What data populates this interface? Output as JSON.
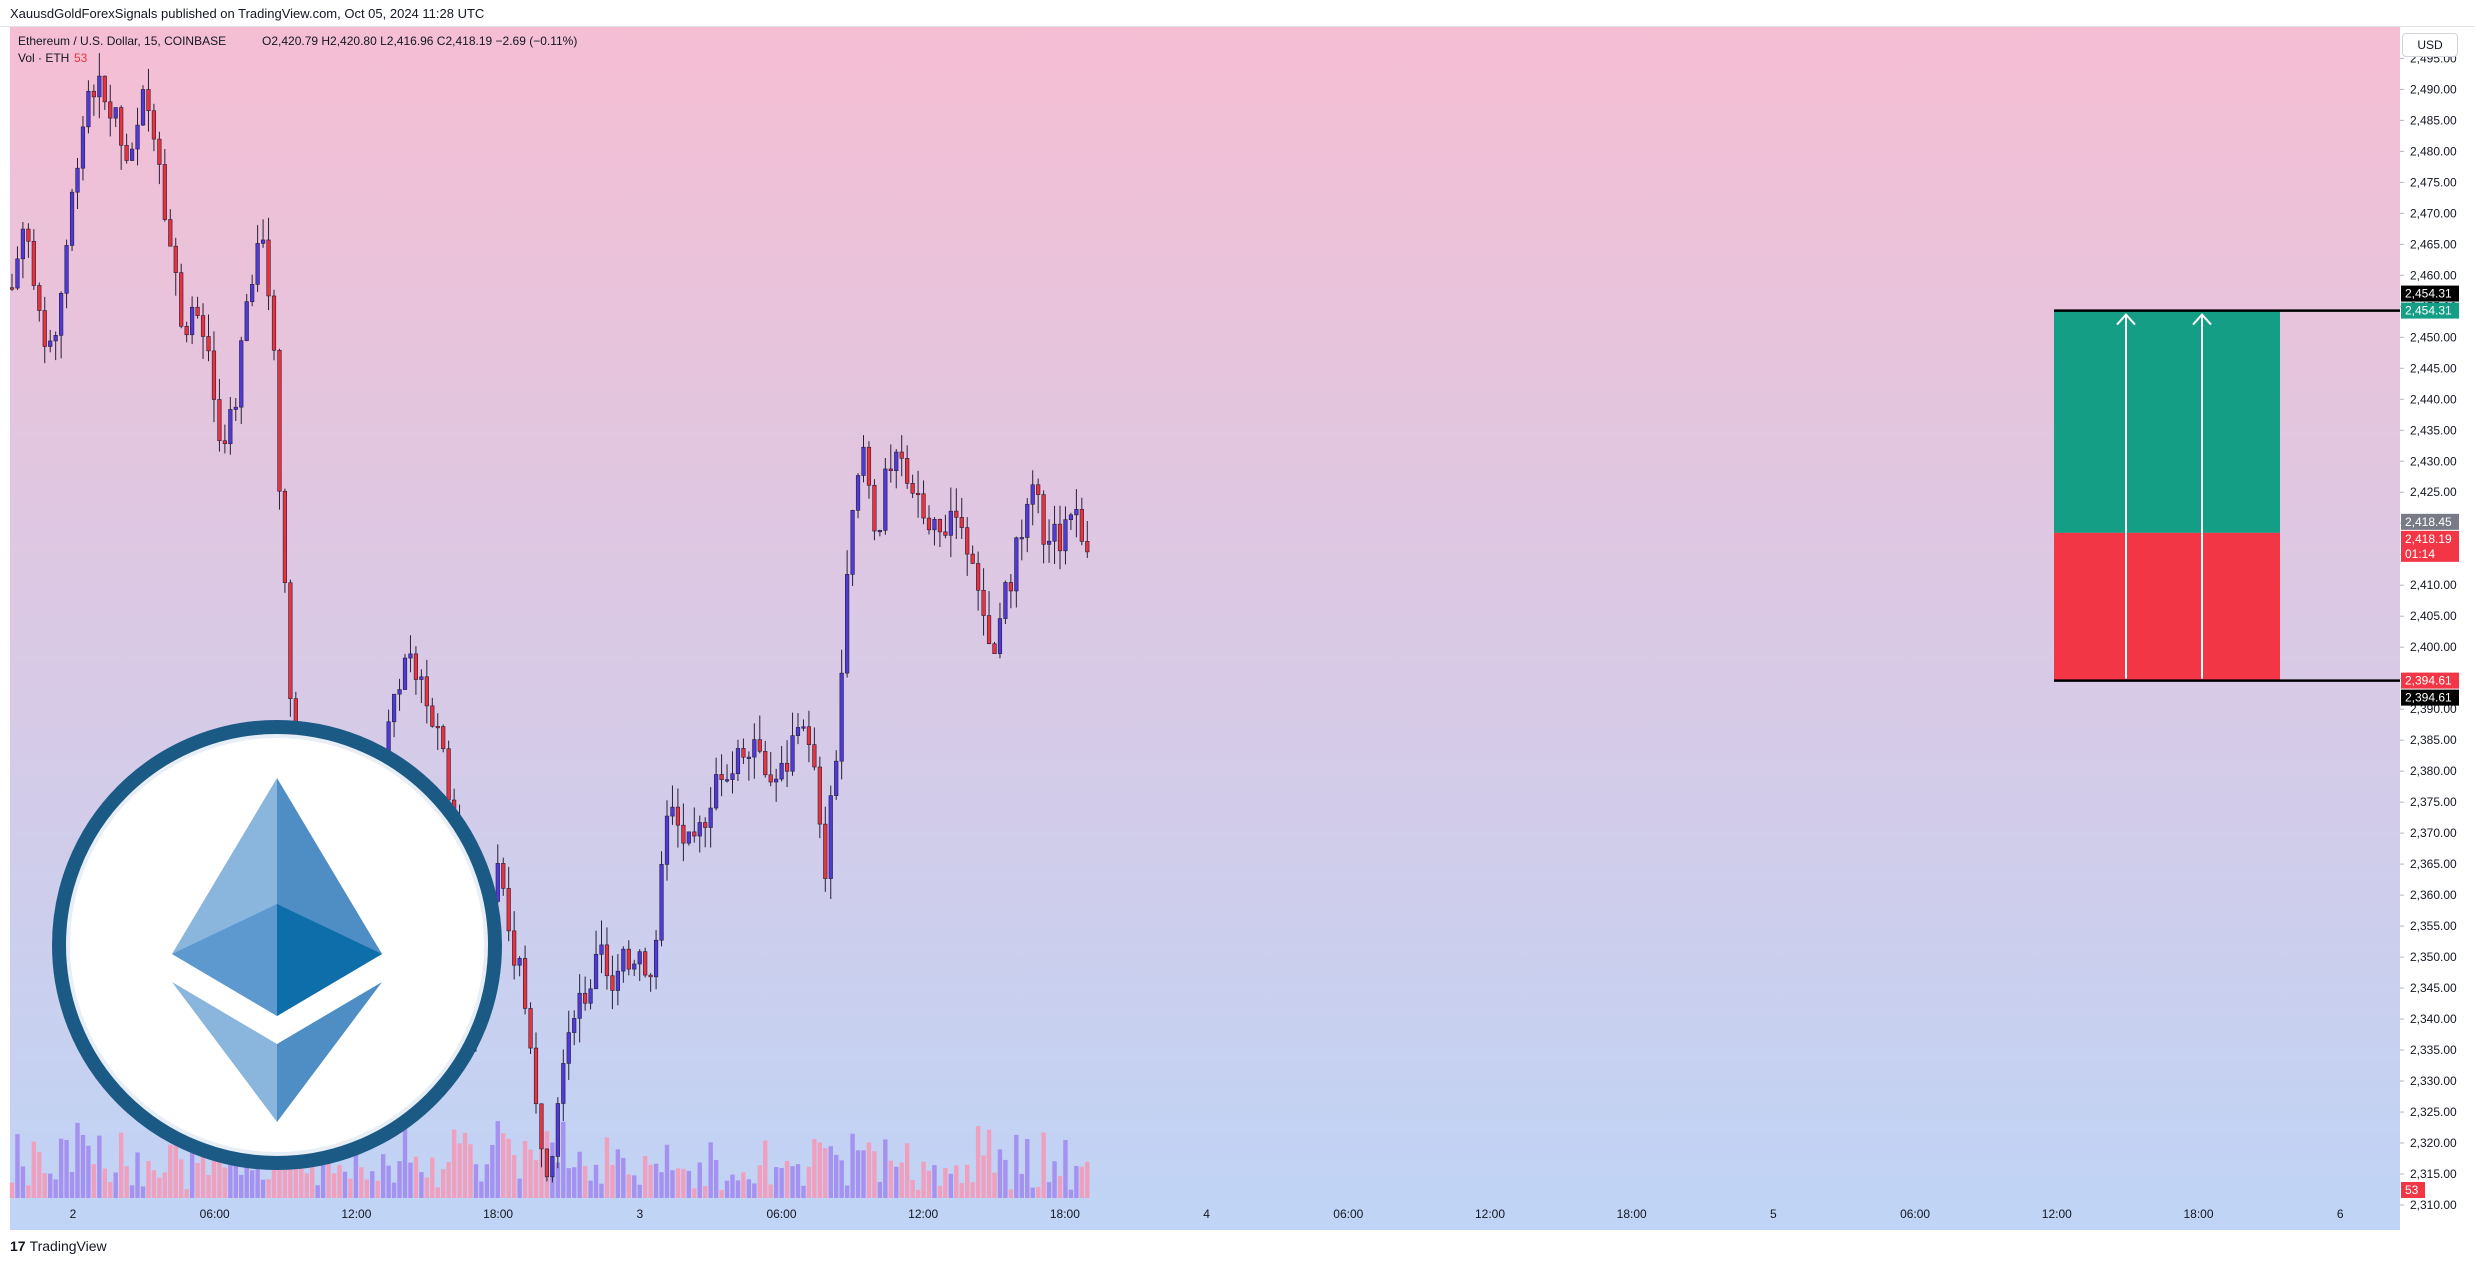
{
  "header": {
    "publisher_line": "XauusdGoldForexSignals published on TradingView.com, Oct 05, 2024 11:28 UTC"
  },
  "footer": {
    "brand": "TradingView",
    "brand_mark": "17"
  },
  "currency_button": "USD",
  "colors": {
    "bg_top": "#f5bed3",
    "bg_bottom": "#bfd4f6",
    "candle_up": "#4d3ad9",
    "candle_down": "#e8323c",
    "wick": "#2a1e3a",
    "volume_up": "#a592f0",
    "volume_down": "#f0a0bf",
    "target_zone": "#149e85",
    "stop_zone": "#f23645",
    "eth_blue": "#1c5a86"
  },
  "chart_data": {
    "type": "candlestick",
    "title": "Ethereum / U.S. Dollar, 15, COINBASE",
    "ohlc_label": "O2,420.79  H2,420.80  L2,416.96  C2,418.19  −2.69 (−0.11%)",
    "volume_label": "Vol · ETH",
    "volume_value": "53",
    "yaxis": {
      "min": 2310,
      "max": 2497,
      "ticks": [
        "2,495.00",
        "2,490.00",
        "2,485.00",
        "2,480.00",
        "2,475.00",
        "2,470.00",
        "2,465.00",
        "2,460.00",
        "2,455.00",
        "2,450.00",
        "2,445.00",
        "2,440.00",
        "2,435.00",
        "2,430.00",
        "2,425.00",
        "2,420.00",
        "2,415.00",
        "2,410.00",
        "2,405.00",
        "2,400.00",
        "2,395.00",
        "2,390.00",
        "2,385.00",
        "2,380.00",
        "2,375.00",
        "2,370.00",
        "2,365.00",
        "2,360.00",
        "2,355.00",
        "2,350.00",
        "2,345.00",
        "2,340.00",
        "2,335.00",
        "2,330.00",
        "2,325.00",
        "2,320.00",
        "2,315.00",
        "2,310.00"
      ]
    },
    "xaxis": {
      "ticks": [
        "2",
        "06:00",
        "12:00",
        "18:00",
        "3",
        "06:00",
        "12:00",
        "18:00",
        "4",
        "06:00",
        "12:00",
        "18:00",
        "5",
        "06:00",
        "12:00",
        "18:00",
        "6"
      ]
    },
    "price_path": [
      {
        "t": 0,
        "p": 2458
      },
      {
        "t": 2,
        "p": 2470
      },
      {
        "t": 4,
        "p": 2452
      },
      {
        "t": 6,
        "p": 2446
      },
      {
        "t": 8,
        "p": 2462
      },
      {
        "t": 10,
        "p": 2480
      },
      {
        "t": 12,
        "p": 2492
      },
      {
        "t": 14,
        "p": 2488
      },
      {
        "t": 16,
        "p": 2484
      },
      {
        "t": 18,
        "p": 2476
      },
      {
        "t": 20,
        "p": 2488
      },
      {
        "t": 22,
        "p": 2484
      },
      {
        "t": 24,
        "p": 2466
      },
      {
        "t": 26,
        "p": 2452
      },
      {
        "t": 28,
        "p": 2455
      },
      {
        "t": 30,
        "p": 2445
      },
      {
        "t": 32,
        "p": 2430
      },
      {
        "t": 34,
        "p": 2440
      },
      {
        "t": 36,
        "p": 2457
      },
      {
        "t": 38,
        "p": 2470
      },
      {
        "t": 40,
        "p": 2448
      },
      {
        "t": 42,
        "p": 2400
      },
      {
        "t": 44,
        "p": 2378
      },
      {
        "t": 46,
        "p": 2365
      },
      {
        "t": 48,
        "p": 2372
      },
      {
        "t": 50,
        "p": 2367
      },
      {
        "t": 52,
        "p": 2370
      },
      {
        "t": 54,
        "p": 2368
      },
      {
        "t": 56,
        "p": 2372
      },
      {
        "t": 58,
        "p": 2392
      },
      {
        "t": 60,
        "p": 2396
      },
      {
        "t": 62,
        "p": 2398
      },
      {
        "t": 64,
        "p": 2390
      },
      {
        "t": 66,
        "p": 2384
      },
      {
        "t": 68,
        "p": 2365
      },
      {
        "t": 70,
        "p": 2340
      },
      {
        "t": 72,
        "p": 2348
      },
      {
        "t": 74,
        "p": 2365
      },
      {
        "t": 76,
        "p": 2352
      },
      {
        "t": 78,
        "p": 2348
      },
      {
        "t": 80,
        "p": 2325
      },
      {
        "t": 82,
        "p": 2316
      },
      {
        "t": 84,
        "p": 2335
      },
      {
        "t": 86,
        "p": 2343
      },
      {
        "t": 88,
        "p": 2345
      },
      {
        "t": 90,
        "p": 2350
      },
      {
        "t": 92,
        "p": 2345
      },
      {
        "t": 94,
        "p": 2350
      },
      {
        "t": 96,
        "p": 2352
      },
      {
        "t": 98,
        "p": 2345
      },
      {
        "t": 100,
        "p": 2375
      },
      {
        "t": 102,
        "p": 2370
      },
      {
        "t": 104,
        "p": 2366
      },
      {
        "t": 106,
        "p": 2374
      },
      {
        "t": 108,
        "p": 2381
      },
      {
        "t": 110,
        "p": 2380
      },
      {
        "t": 112,
        "p": 2385
      },
      {
        "t": 114,
        "p": 2386
      },
      {
        "t": 116,
        "p": 2378
      },
      {
        "t": 118,
        "p": 2380
      },
      {
        "t": 120,
        "p": 2388
      },
      {
        "t": 122,
        "p": 2385
      },
      {
        "t": 124,
        "p": 2362
      },
      {
        "t": 126,
        "p": 2385
      },
      {
        "t": 128,
        "p": 2418
      },
      {
        "t": 130,
        "p": 2432
      },
      {
        "t": 132,
        "p": 2418
      },
      {
        "t": 134,
        "p": 2430
      },
      {
        "t": 136,
        "p": 2428
      },
      {
        "t": 138,
        "p": 2426
      },
      {
        "t": 140,
        "p": 2418
      },
      {
        "t": 142,
        "p": 2418
      },
      {
        "t": 144,
        "p": 2424
      },
      {
        "t": 146,
        "p": 2416
      },
      {
        "t": 148,
        "p": 2404
      },
      {
        "t": 150,
        "p": 2398
      },
      {
        "t": 152,
        "p": 2410
      },
      {
        "t": 154,
        "p": 2418
      },
      {
        "t": 156,
        "p": 2424
      },
      {
        "t": 158,
        "p": 2418
      },
      {
        "t": 160,
        "p": 2418
      },
      {
        "t": 162,
        "p": 2423
      },
      {
        "t": 164,
        "p": 2418
      }
    ],
    "position": {
      "side": "long",
      "target_price": "2,454.31",
      "entry_price": "2,418.45",
      "stop_price": "2,394.61",
      "target": 2454.31,
      "entry": 2418.45,
      "stop": 2394.61
    },
    "price_labels": {
      "target_top": "2,454.31",
      "target_bottom": "2,454.31",
      "entry": "2,418.45",
      "last": "2,418.19",
      "countdown": "01:14",
      "stop_top": "2,394.61",
      "stop_bottom": "2,394.61",
      "volume_last": "53"
    }
  }
}
